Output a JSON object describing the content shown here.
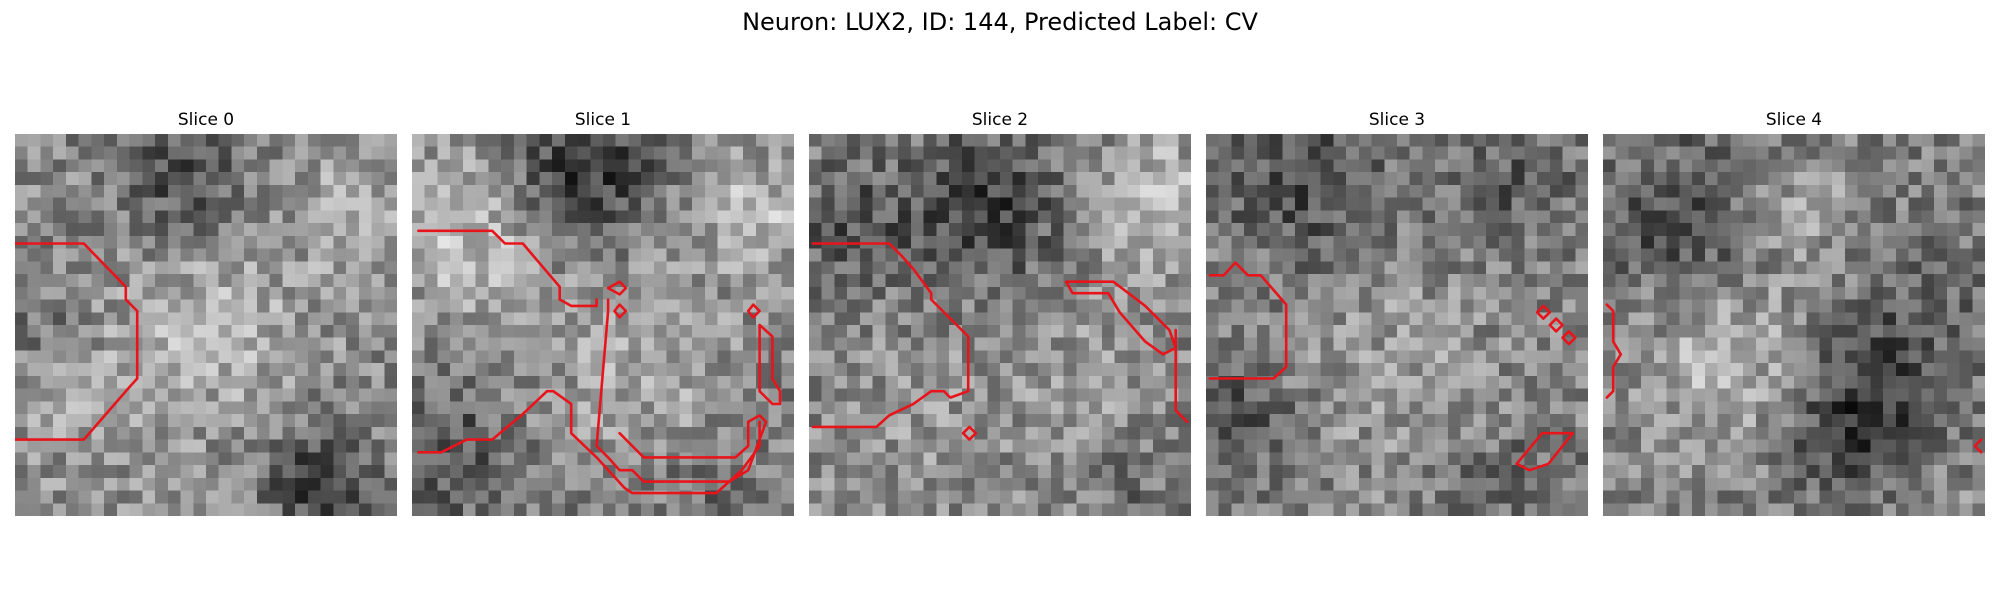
{
  "figure": {
    "title": "Neuron: LUX2, ID: 144, Predicted Label: CV"
  },
  "contour_color": "#e8141b",
  "colormap": "gray",
  "panels": [
    {
      "title": "Slice 0"
    },
    {
      "title": "Slice 1"
    },
    {
      "title": "Slice 2"
    },
    {
      "title": "Slice 3"
    },
    {
      "title": "Slice 4"
    }
  ]
}
